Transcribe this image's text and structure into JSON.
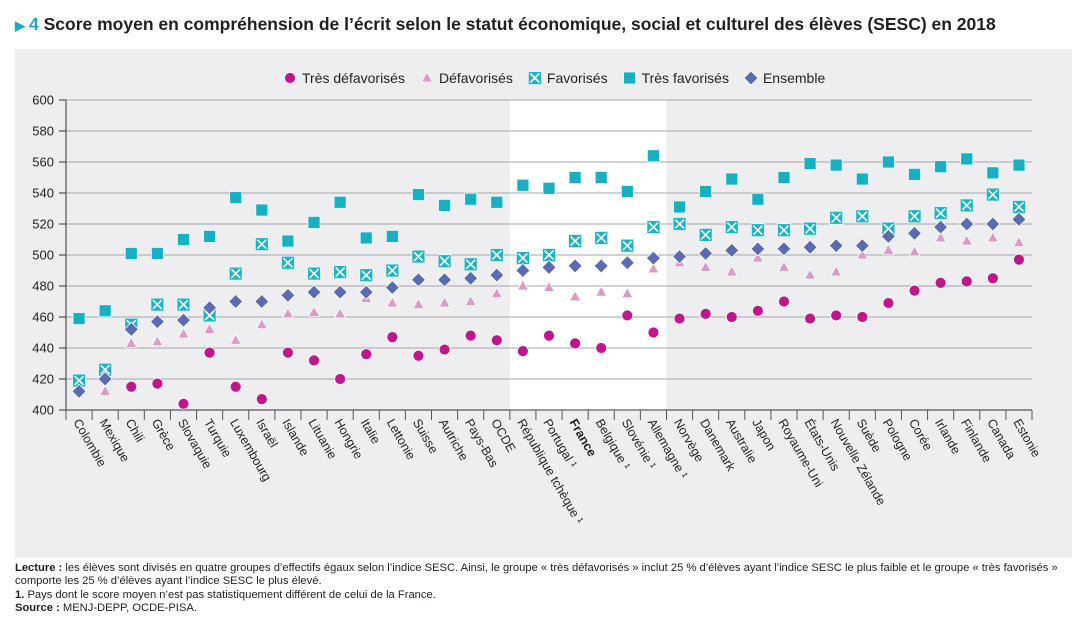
{
  "figure": {
    "arrow": "▶",
    "number": "4",
    "title": "Score moyen en compréhension de l’écrit selon le statut économique, social et culturel des élèves (SESC) en 2018"
  },
  "notes": {
    "lecture_label": "Lecture :",
    "lecture_text": " les élèves sont divisés en quatre groupes d’effectifs égaux selon l’indice SESC. Ainsi, le groupe « très défavorisés » inclut 25 % d’élèves ayant l’indice SESC le plus faible et le groupe « très favorisés » comporte les 25 % d’élèves ayant l’indice SESC le plus élevé.",
    "footnote_label": "1.",
    "footnote_text": " Pays dont le score moyen n’est pas statistiquement différent de celui de la France.",
    "source_label": "Source :",
    "source_text": " MENJ-DEPP, OCDE-PISA."
  },
  "colors": {
    "tres_defavorises": "#c0168c",
    "defavorises": "#dc9bc6",
    "favorises": "#1ab4c4",
    "tres_favorises": "#17b0c2",
    "ensemble": "#5b6bb1",
    "highlight_band": "#ffffff",
    "panel": "#eeeef0"
  },
  "chart_data": {
    "type": "scatter",
    "title": "Score moyen en compréhension de l’écrit selon le statut économique, social et culturel des élèves (SESC) en 2018",
    "xlabel": "",
    "ylabel": "",
    "ylim": [
      400,
      600
    ],
    "yticks": [
      400,
      420,
      440,
      460,
      480,
      500,
      520,
      540,
      560,
      580,
      600
    ],
    "grid": true,
    "legend_position": "top-center",
    "highlight_range": [
      "République tchèque ¹",
      "Allemagne ¹"
    ],
    "bold_category": "France",
    "categories": [
      "Colombie",
      "Mexique",
      "Chili",
      "Grèce",
      "Slovaquie",
      "Turquie",
      "Luxembourg",
      "Israël",
      "Islande",
      "Lituanie",
      "Hongrie",
      "Italie",
      "Lettonie",
      "Suisse",
      "Autriche",
      "Pays-Bas",
      "OCDE",
      "République tchèque ¹",
      "Portugal ¹",
      "France",
      "Belgique ¹",
      "Slovénie ¹",
      "Allemagne ¹",
      "Norvège",
      "Danemark",
      "Australie",
      "Japon",
      "Royaume-Uni",
      "États-Unis",
      "Nouvelle Zélande",
      "Suède",
      "Pologne",
      "Corée",
      "Irlande",
      "Finlande",
      "Canada",
      "Estonie"
    ],
    "series": [
      {
        "name": "Très défavorisés",
        "marker": "circle",
        "color": "#c0168c",
        "values": [
          null,
          null,
          415,
          417,
          404,
          437,
          415,
          407,
          437,
          432,
          420,
          436,
          447,
          435,
          439,
          448,
          445,
          438,
          448,
          443,
          440,
          461,
          450,
          459,
          462,
          460,
          464,
          470,
          459,
          461,
          460,
          469,
          477,
          482,
          483,
          485,
          497
        ]
      },
      {
        "name": "Défavorisés",
        "marker": "triangle",
        "color": "#dc9bc6",
        "values": [
          null,
          412,
          443,
          444,
          449,
          452,
          445,
          455,
          462,
          463,
          462,
          472,
          469,
          468,
          469,
          470,
          475,
          480,
          479,
          473,
          476,
          475,
          491,
          495,
          492,
          489,
          498,
          492,
          487,
          489,
          500,
          503,
          502,
          511,
          509,
          511,
          508
        ]
      },
      {
        "name": "Favorisés",
        "marker": "square-x",
        "color": "#1ab4c4",
        "values": [
          419,
          426,
          455,
          468,
          468,
          461,
          488,
          507,
          495,
          488,
          489,
          487,
          490,
          499,
          496,
          494,
          500,
          498,
          500,
          509,
          511,
          506,
          518,
          520,
          513,
          518,
          516,
          516,
          517,
          524,
          525,
          517,
          525,
          527,
          532,
          539,
          531
        ]
      },
      {
        "name": "Très favorisés",
        "marker": "square",
        "color": "#17b0c2",
        "values": [
          459,
          464,
          501,
          501,
          510,
          512,
          537,
          529,
          509,
          521,
          534,
          511,
          512,
          539,
          532,
          536,
          534,
          545,
          543,
          550,
          550,
          541,
          564,
          531,
          541,
          549,
          536,
          550,
          559,
          558,
          549,
          560,
          552,
          557,
          562,
          553,
          558
        ]
      },
      {
        "name": "Ensemble",
        "marker": "diamond",
        "color": "#5b6bb1",
        "values": [
          412,
          420,
          452,
          457,
          458,
          466,
          470,
          470,
          474,
          476,
          476,
          476,
          479,
          484,
          484,
          485,
          487,
          490,
          492,
          493,
          493,
          495,
          498,
          499,
          501,
          503,
          504,
          504,
          505,
          506,
          506,
          512,
          514,
          518,
          520,
          520,
          523
        ]
      }
    ]
  }
}
